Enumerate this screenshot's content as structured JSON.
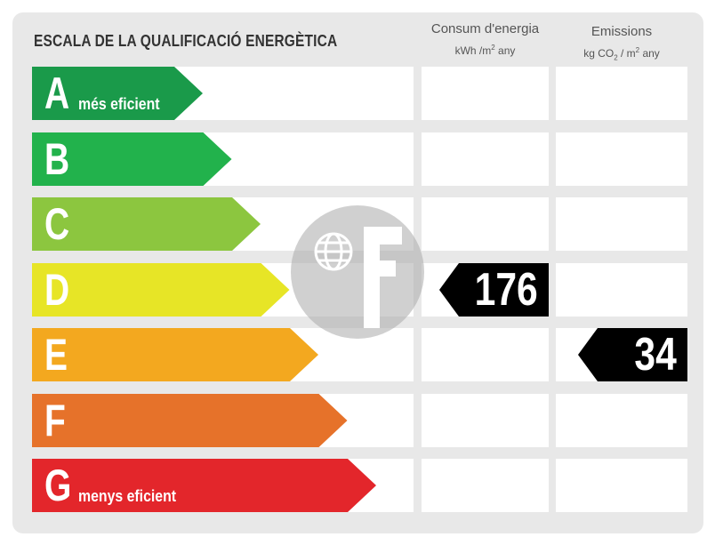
{
  "title": "ESCALA DE LA QUALIFICACIÓ ENERGÈTICA",
  "columns": {
    "consumption": {
      "title": "Consum d'energia",
      "unit_prefix": "kWh /m",
      "unit_exp": "2",
      "unit_suffix": " any"
    },
    "emissions": {
      "title": "Emissions",
      "unit_prefix": "kg CO",
      "unit_sub": "2",
      "unit_mid": " / m",
      "unit_exp": "2",
      "unit_suffix": " any"
    }
  },
  "ratings": [
    {
      "letter": "A",
      "label": "més eficient",
      "color": "#1a9a4a"
    },
    {
      "letter": "B",
      "label": "",
      "color": "#22b24c"
    },
    {
      "letter": "C",
      "label": "",
      "color": "#8cc63f"
    },
    {
      "letter": "D",
      "label": "",
      "color": "#e7e526"
    },
    {
      "letter": "E",
      "label": "",
      "color": "#f3a81f"
    },
    {
      "letter": "F",
      "label": "",
      "color": "#e6722a"
    },
    {
      "letter": "G",
      "label": "menys eficient",
      "color": "#e3262b"
    }
  ],
  "consumption_value": {
    "rating": "D",
    "value": "176"
  },
  "emissions_value": {
    "rating": "E",
    "value": "34"
  },
  "watermark_icon": "globe-logo-icon"
}
